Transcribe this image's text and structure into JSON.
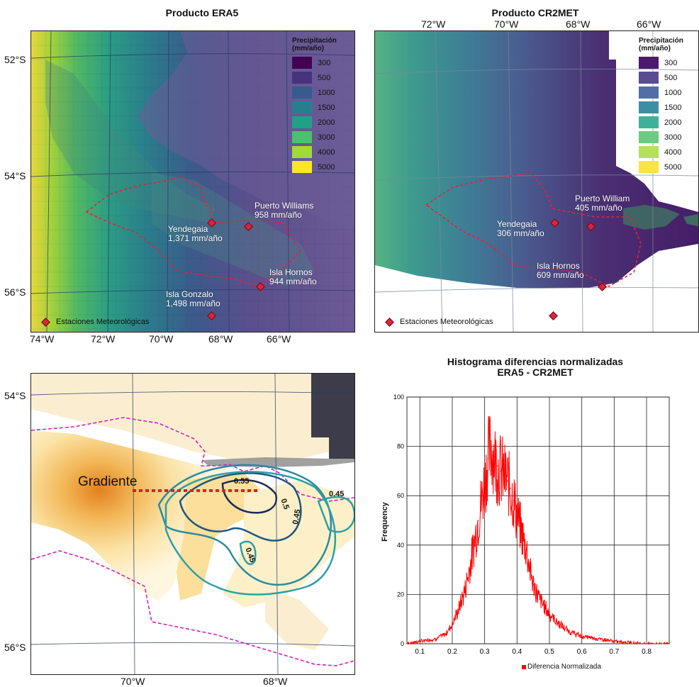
{
  "top_left": {
    "title": "Producto ERA5",
    "lat_labels": [
      "52°S",
      "54°S",
      "56°S"
    ],
    "lon_labels": [
      "74°W",
      "72°W",
      "70°W",
      "68°W",
      "66°W"
    ],
    "legend_title_1": "Precipitación",
    "legend_title_2": "(mm/año)",
    "legend_items": [
      {
        "label": "300",
        "color": "#440154"
      },
      {
        "label": "500",
        "color": "#46337e"
      },
      {
        "label": "1000",
        "color": "#365c8d"
      },
      {
        "label": "1500",
        "color": "#277f8e"
      },
      {
        "label": "2000",
        "color": "#1fa187"
      },
      {
        "label": "3000",
        "color": "#4ac16d"
      },
      {
        "label": "4000",
        "color": "#a0da39"
      },
      {
        "label": "5000",
        "color": "#fde725"
      }
    ],
    "stations": [
      {
        "name": "Puerto Williams",
        "value": "958 mm/año"
      },
      {
        "name": "Yendegaia",
        "value": "1,371 mm/año"
      },
      {
        "name": "Isla Hornos",
        "value": "944 mm/año"
      },
      {
        "name": "Isla Gonzalo",
        "value": "1,498 mm/año"
      }
    ],
    "station_legend": "Estaciones Meteorológicas"
  },
  "top_right": {
    "title": "Producto CR2MET",
    "lon_labels": [
      "72°W",
      "70°W",
      "68°W",
      "66°W"
    ],
    "legend_title_1": "Precipitación",
    "legend_title_2": "(mm/año)",
    "legend_items": [
      {
        "label": "300",
        "color": "#4b1a6e"
      },
      {
        "label": "500",
        "color": "#5b4b93"
      },
      {
        "label": "1000",
        "color": "#4f6fa6"
      },
      {
        "label": "1500",
        "color": "#3d8ea4"
      },
      {
        "label": "2000",
        "color": "#3fb19a"
      },
      {
        "label": "3000",
        "color": "#6ccb7f"
      },
      {
        "label": "4000",
        "color": "#b5e05c"
      },
      {
        "label": "5000",
        "color": "#f8e63f"
      }
    ],
    "stations": [
      {
        "name": "Puerto William",
        "value": "405 mm/año"
      },
      {
        "name": "Yendegaia",
        "value": "306 mm/año"
      },
      {
        "name": "Isla Hornos",
        "value": "609 mm/año"
      }
    ],
    "station_legend": "Estaciones Meteorológicas"
  },
  "bottom_left": {
    "lat_labels": [
      "54°S",
      "56°S"
    ],
    "lon_labels": [
      "70°W",
      "68°W"
    ],
    "gradient_label": "Gradiente",
    "contour_labels": [
      "0.55",
      "0.5",
      "0.45",
      "0.45",
      "0.45"
    ]
  },
  "histogram": {
    "title_1": "Histograma diferencias normalizadas",
    "title_2": "ERA5 - CR2MET",
    "ylabel": "Frequency",
    "legend": "Diferencia Normalizada",
    "series_color": "#ff0000",
    "y_ticks": [
      "0",
      "20",
      "40",
      "60",
      "80",
      "100"
    ],
    "x_ticks": [
      "0.1",
      "0.2",
      "0.3",
      "0.4",
      "0.5",
      "0.6",
      "0.7",
      "0.8"
    ]
  },
  "chart_data": {
    "type": "histogram",
    "title": "Histograma diferencias normalizadas ERA5 - CR2MET",
    "xlabel": "",
    "ylabel": "Frequency",
    "xlim": [
      0.06,
      0.87
    ],
    "ylim": [
      0,
      100
    ],
    "series": [
      {
        "name": "Diferencia Normalizada",
        "x": [
          0.06,
          0.1,
          0.15,
          0.18,
          0.2,
          0.22,
          0.24,
          0.26,
          0.28,
          0.3,
          0.31,
          0.32,
          0.33,
          0.34,
          0.35,
          0.36,
          0.37,
          0.38,
          0.39,
          0.4,
          0.41,
          0.42,
          0.43,
          0.44,
          0.45,
          0.47,
          0.5,
          0.53,
          0.56,
          0.6,
          0.65,
          0.7,
          0.75,
          0.8,
          0.87
        ],
        "y": [
          0,
          1,
          2,
          4,
          8,
          14,
          22,
          35,
          50,
          65,
          75,
          80,
          76,
          72,
          70,
          68,
          66,
          63,
          58,
          52,
          47,
          42,
          38,
          30,
          24,
          18,
          12,
          8,
          5,
          3,
          2,
          1,
          0.5,
          0,
          0
        ]
      }
    ]
  }
}
